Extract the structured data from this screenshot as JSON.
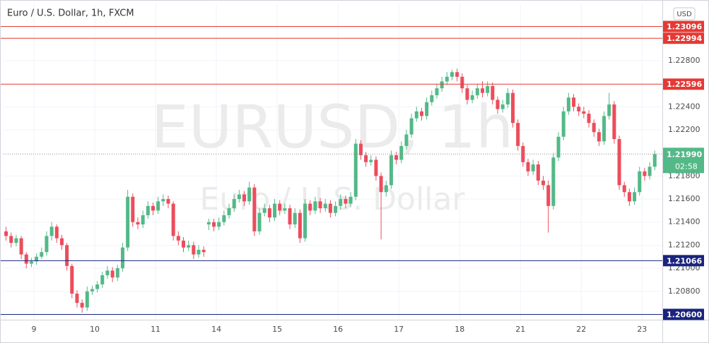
{
  "chart_data": {
    "type": "candlestick",
    "title": "Euro / U.S. Dollar, 1h, FXCM",
    "watermark": "EURUSD, 1h",
    "watermark_subtitle": "Euro / U.S. Dollar",
    "currency": "USD",
    "up_color": "#53b987",
    "down_color": "#eb4d5c",
    "grid": true,
    "ylim": [
      1.20554,
      1.23295
    ],
    "xlim": [
      -0.5,
      129.5
    ],
    "yticks": [
      {
        "value": 1.228,
        "label": "1.22800"
      },
      {
        "value": 1.224,
        "label": "1.22400"
      },
      {
        "value": 1.222,
        "label": "1.22200"
      },
      {
        "value": 1.218,
        "label": "1.21800"
      },
      {
        "value": 1.216,
        "label": "1.21600"
      },
      {
        "value": 1.214,
        "label": "1.21400"
      },
      {
        "value": 1.212,
        "label": "1.21200"
      },
      {
        "value": 1.21,
        "label": "1.21000"
      },
      {
        "value": 1.208,
        "label": "1.20800"
      }
    ],
    "xticks": [
      {
        "value": 5.5,
        "label": "9"
      },
      {
        "value": 17.5,
        "label": "10"
      },
      {
        "value": 29.5,
        "label": "11"
      },
      {
        "value": 41.5,
        "label": "14"
      },
      {
        "value": 53.5,
        "label": "15"
      },
      {
        "value": 65.5,
        "label": "16"
      },
      {
        "value": 77.5,
        "label": "17"
      },
      {
        "value": 89.5,
        "label": "18"
      },
      {
        "value": 101.5,
        "label": "21"
      },
      {
        "value": 113.5,
        "label": "22"
      },
      {
        "value": 125.5,
        "label": "23"
      }
    ],
    "levels": [
      {
        "value": 1.23096,
        "color": "#e53935"
      },
      {
        "value": 1.22994,
        "color": "#e53935"
      },
      {
        "value": 1.22596,
        "color": "#e53935"
      },
      {
        "value": 1.21066,
        "color": "#1a237e"
      },
      {
        "value": {
          "value": 1.206,
          "label": "1.20600"
        },
        "color": "#1a237e"
      }
    ],
    "last_price": {
      "value": 1.2199,
      "label": "1.21990"
    },
    "countdown": "02:58",
    "candles": [
      [
        1.2132,
        1.2136,
        1.2124,
        1.2128
      ],
      [
        1.2128,
        1.2131,
        1.2118,
        1.2122
      ],
      [
        1.2122,
        1.2129,
        1.2119,
        1.2126
      ],
      [
        1.2126,
        1.2128,
        1.2108,
        1.2112
      ],
      [
        1.2112,
        1.2114,
        1.21,
        1.2104
      ],
      [
        1.2104,
        1.2109,
        1.2101,
        1.2106
      ],
      [
        1.2106,
        1.2113,
        1.2103,
        1.211
      ],
      [
        1.211,
        1.2118,
        1.2108,
        1.2114
      ],
      [
        1.2114,
        1.2132,
        1.2111,
        1.2128
      ],
      [
        1.2128,
        1.214,
        1.2124,
        1.2136
      ],
      [
        1.2136,
        1.2138,
        1.2122,
        1.2126
      ],
      [
        1.2126,
        1.2129,
        1.2116,
        1.212
      ],
      [
        1.212,
        1.2122,
        1.2098,
        1.2102
      ],
      [
        1.2102,
        1.2104,
        1.2074,
        1.2078
      ],
      [
        1.2078,
        1.2081,
        1.2066,
        1.207
      ],
      [
        1.207,
        1.2073,
        1.20615,
        1.2066
      ],
      [
        1.2066,
        1.2084,
        1.2063,
        1.208
      ],
      [
        1.208,
        1.2085,
        1.2077,
        1.2082
      ],
      [
        1.2082,
        1.2089,
        1.2079,
        1.2086
      ],
      [
        1.2086,
        1.2097,
        1.2083,
        1.2094
      ],
      [
        1.2094,
        1.2102,
        1.2091,
        1.2098
      ],
      [
        1.2098,
        1.2101,
        1.2088,
        1.2092
      ],
      [
        1.2092,
        1.2103,
        1.2089,
        1.21
      ],
      [
        1.21,
        1.2122,
        1.2097,
        1.2118
      ],
      [
        1.2118,
        1.2168,
        1.2115,
        1.2162
      ],
      [
        1.2162,
        1.2165,
        1.2136,
        1.214
      ],
      [
        1.214,
        1.2144,
        1.2134,
        1.2138
      ],
      [
        1.2138,
        1.215,
        1.2135,
        1.2146
      ],
      [
        1.2146,
        1.2158,
        1.2143,
        1.2154
      ],
      [
        1.2154,
        1.2157,
        1.2146,
        1.215
      ],
      [
        1.215,
        1.2162,
        1.2147,
        1.2158
      ],
      [
        1.2158,
        1.2164,
        1.2154,
        1.216
      ],
      [
        1.216,
        1.2163,
        1.2152,
        1.2156
      ],
      [
        1.2156,
        1.2158,
        1.2124,
        1.2128
      ],
      [
        1.2128,
        1.2132,
        1.212,
        1.2124
      ],
      [
        1.2124,
        1.2127,
        1.2114,
        1.2118
      ],
      [
        1.2118,
        1.2124,
        1.2115,
        1.212
      ],
      [
        1.212,
        1.2123,
        1.2108,
        1.2112
      ],
      [
        1.2112,
        1.212,
        1.2109,
        1.2116
      ],
      [
        1.2116,
        1.2119,
        1.211,
        1.2114
      ],
      [
        1.2138,
        1.2143,
        1.2133,
        1.214
      ],
      [
        1.214,
        1.2143,
        1.2132,
        1.2136
      ],
      [
        1.2136,
        1.2144,
        1.2133,
        1.214
      ],
      [
        1.214,
        1.215,
        1.2137,
        1.2146
      ],
      [
        1.2146,
        1.2156,
        1.2143,
        1.2152
      ],
      [
        1.2152,
        1.2164,
        1.2149,
        1.216
      ],
      [
        1.216,
        1.2168,
        1.2157,
        1.2164
      ],
      [
        1.2164,
        1.2167,
        1.2154,
        1.2158
      ],
      [
        1.2158,
        1.2175,
        1.2155,
        1.217
      ],
      [
        1.217,
        1.2173,
        1.2128,
        1.2132
      ],
      [
        1.2132,
        1.2152,
        1.2129,
        1.2148
      ],
      [
        1.2148,
        1.2156,
        1.2145,
        1.2152
      ],
      [
        1.2152,
        1.2155,
        1.214,
        1.2144
      ],
      [
        1.2144,
        1.216,
        1.2141,
        1.2156
      ],
      [
        1.2156,
        1.2159,
        1.2146,
        1.215
      ],
      [
        1.215,
        1.2156,
        1.2147,
        1.2152
      ],
      [
        1.2152,
        1.2155,
        1.2134,
        1.2138
      ],
      [
        1.2138,
        1.2152,
        1.2135,
        1.2148
      ],
      [
        1.2148,
        1.2151,
        1.2122,
        1.2126
      ],
      [
        1.2126,
        1.216,
        1.2123,
        1.2156
      ],
      [
        1.2156,
        1.2159,
        1.2146,
        1.215
      ],
      [
        1.215,
        1.2162,
        1.2147,
        1.2158
      ],
      [
        1.2158,
        1.2161,
        1.2148,
        1.2152
      ],
      [
        1.2152,
        1.216,
        1.2149,
        1.2156
      ],
      [
        1.2156,
        1.2159,
        1.2144,
        1.2148
      ],
      [
        1.2148,
        1.2158,
        1.2145,
        1.2154
      ],
      [
        1.2154,
        1.2164,
        1.2151,
        1.216
      ],
      [
        1.216,
        1.2163,
        1.2152,
        1.2156
      ],
      [
        1.2156,
        1.2166,
        1.2153,
        1.2162
      ],
      [
        1.2162,
        1.2212,
        1.2159,
        1.2208
      ],
      [
        1.2208,
        1.2211,
        1.2194,
        1.2198
      ],
      [
        1.2198,
        1.2201,
        1.2188,
        1.2192
      ],
      [
        1.2192,
        1.2198,
        1.2189,
        1.2194
      ],
      [
        1.2194,
        1.2197,
        1.2176,
        1.218
      ],
      [
        1.218,
        1.2183,
        1.2125,
        1.2166
      ],
      [
        1.2166,
        1.2176,
        1.2162,
        1.2172
      ],
      [
        1.2172,
        1.2202,
        1.2169,
        1.2198
      ],
      [
        1.2198,
        1.2201,
        1.219,
        1.2194
      ],
      [
        1.2194,
        1.221,
        1.2191,
        1.2206
      ],
      [
        1.2206,
        1.222,
        1.2203,
        1.2216
      ],
      [
        1.2216,
        1.2234,
        1.2213,
        1.223
      ],
      [
        1.223,
        1.224,
        1.2227,
        1.2236
      ],
      [
        1.2236,
        1.2239,
        1.2228,
        1.2232
      ],
      [
        1.2232,
        1.2248,
        1.2229,
        1.2244
      ],
      [
        1.2244,
        1.2254,
        1.2241,
        1.225
      ],
      [
        1.225,
        1.226,
        1.2247,
        1.2256
      ],
      [
        1.2256,
        1.2266,
        1.2253,
        1.2262
      ],
      [
        1.2262,
        1.227,
        1.2259,
        1.2266
      ],
      [
        1.2266,
        1.2272,
        1.2263,
        1.227
      ],
      [
        1.227,
        1.2273,
        1.2262,
        1.2266
      ],
      [
        1.2266,
        1.2269,
        1.2252,
        1.2256
      ],
      [
        1.2256,
        1.2259,
        1.2242,
        1.2246
      ],
      [
        1.2246,
        1.2254,
        1.2243,
        1.225
      ],
      [
        1.225,
        1.226,
        1.2247,
        1.2256
      ],
      [
        1.2256,
        1.2262,
        1.2248,
        1.2252
      ],
      [
        1.2252,
        1.2262,
        1.2249,
        1.2258
      ],
      [
        1.2258,
        1.2261,
        1.2242,
        1.2246
      ],
      [
        1.2246,
        1.2249,
        1.2234,
        1.2238
      ],
      [
        1.2238,
        1.2246,
        1.2235,
        1.2242
      ],
      [
        1.2242,
        1.2256,
        1.2239,
        1.2252
      ],
      [
        1.2252,
        1.2255,
        1.2222,
        1.2226
      ],
      [
        1.2226,
        1.2229,
        1.2202,
        1.2206
      ],
      [
        1.2206,
        1.2209,
        1.2188,
        1.2192
      ],
      [
        1.2192,
        1.2195,
        1.218,
        1.2184
      ],
      [
        1.2184,
        1.2194,
        1.2181,
        1.219
      ],
      [
        1.219,
        1.2193,
        1.2172,
        1.2176
      ],
      [
        1.2176,
        1.218,
        1.2168,
        1.2172
      ],
      [
        1.2172,
        1.2176,
        1.2131,
        1.2154
      ],
      [
        1.2154,
        1.22,
        1.2151,
        1.2196
      ],
      [
        1.2196,
        1.2218,
        1.2193,
        1.2214
      ],
      [
        1.2214,
        1.224,
        1.2211,
        1.2236
      ],
      [
        1.2236,
        1.2252,
        1.2233,
        1.2248
      ],
      [
        1.2248,
        1.2251,
        1.2236,
        1.224
      ],
      [
        1.224,
        1.2243,
        1.2232,
        1.2236
      ],
      [
        1.2236,
        1.224,
        1.223,
        1.2234
      ],
      [
        1.2234,
        1.2237,
        1.2222,
        1.2226
      ],
      [
        1.2226,
        1.2229,
        1.2214,
        1.2218
      ],
      [
        1.2218,
        1.2221,
        1.2206,
        1.221
      ],
      [
        1.221,
        1.2236,
        1.2207,
        1.2232
      ],
      [
        1.2232,
        1.2252,
        1.2229,
        1.2242
      ],
      [
        1.2242,
        1.2245,
        1.2208,
        1.2212
      ],
      [
        1.2212,
        1.2215,
        1.2168,
        1.2172
      ],
      [
        1.2172,
        1.2175,
        1.2162,
        1.2166
      ],
      [
        1.2166,
        1.2169,
        1.2154,
        1.2158
      ],
      [
        1.2158,
        1.217,
        1.2155,
        1.2166
      ],
      [
        1.2166,
        1.2188,
        1.2163,
        1.2184
      ],
      [
        1.2184,
        1.2187,
        1.2176,
        1.218
      ],
      [
        1.218,
        1.2192,
        1.2177,
        1.2188
      ],
      [
        1.2188,
        1.2202,
        1.2185,
        1.2199
      ]
    ]
  }
}
